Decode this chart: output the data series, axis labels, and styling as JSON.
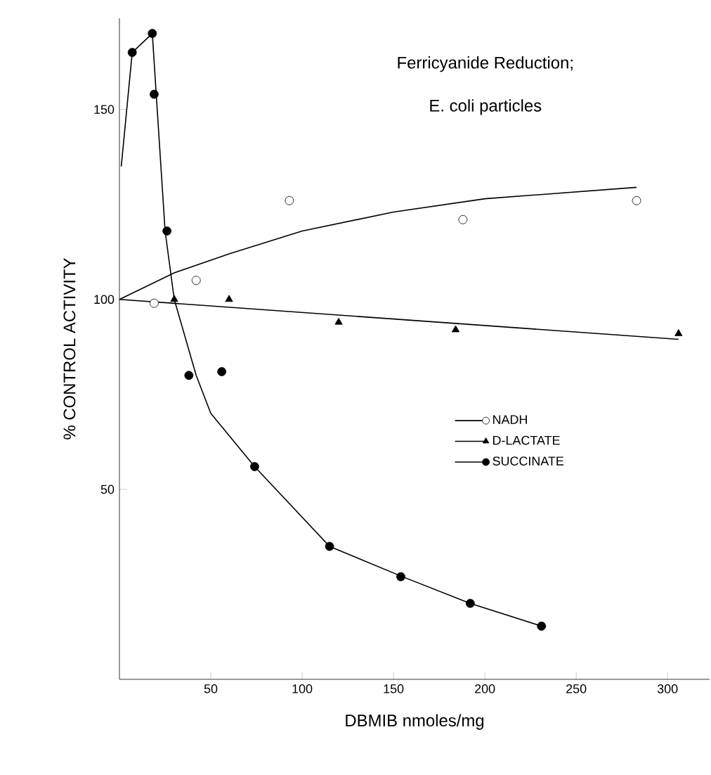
{
  "chart_data": {
    "type": "scatter",
    "title": "Ferricyanide Reduction;",
    "subtitle": "E. coli particles",
    "xlabel": "DBMIB nmoles/mg",
    "ylabel": "% CONTROL ACTIVITY",
    "xlim": [
      0,
      323
    ],
    "ylim": [
      0,
      174
    ],
    "xticks": [
      50,
      100,
      150,
      200,
      250,
      300
    ],
    "yticks": [
      50,
      100,
      150
    ],
    "legend": "right",
    "series": [
      {
        "name": "NADH",
        "marker": "circle",
        "color": "#ffffff",
        "x": [
          19,
          42,
          93,
          188,
          283
        ],
        "values": [
          99,
          105,
          126,
          121,
          126
        ]
      },
      {
        "name": "D-LACTATE",
        "marker": "triangle",
        "color": "#000000",
        "x": [
          30,
          60,
          120,
          184,
          306
        ],
        "values": [
          100,
          100,
          94,
          92,
          91
        ]
      },
      {
        "name": "SUCCINATE",
        "marker": "circle",
        "color": "#000000",
        "x": [
          7,
          18,
          19,
          26,
          38,
          56,
          74,
          115,
          154,
          192,
          231
        ],
        "values": [
          165,
          170,
          154,
          118,
          80,
          81,
          56,
          35,
          27,
          20,
          14
        ]
      },
      {
        "type": "line",
        "marker": "none",
        "color": "#000000",
        "x": [
          0,
          30,
          60,
          100,
          150,
          200,
          283
        ],
        "values": [
          100,
          107,
          112,
          118,
          123,
          126.5,
          129.5
        ]
      },
      {
        "type": "line",
        "marker": "none",
        "color": "#000000",
        "x": [
          0,
          306
        ],
        "values": [
          100,
          89.5
        ]
      },
      {
        "type": "line",
        "marker": "none",
        "color": "#000000",
        "x": [
          1,
          7,
          18,
          20,
          25,
          30,
          42,
          50,
          74,
          115,
          155,
          192,
          231
        ],
        "values": [
          135,
          165,
          170,
          155,
          118,
          100,
          80,
          70,
          56,
          35,
          27,
          20,
          14
        ]
      }
    ]
  }
}
